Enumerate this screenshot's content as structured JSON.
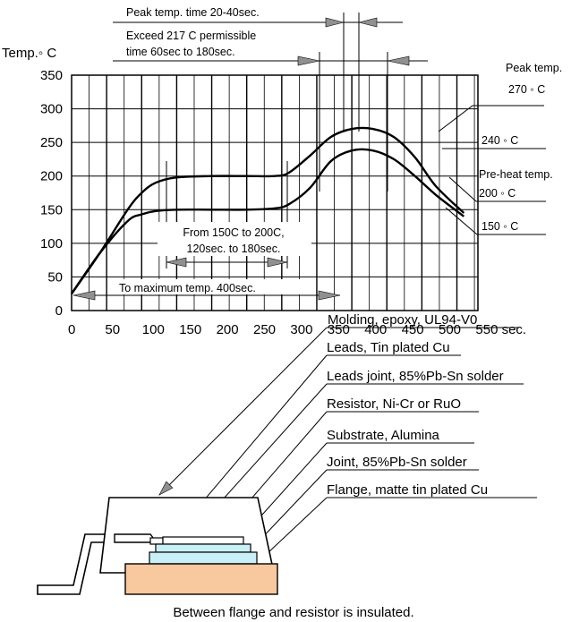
{
  "chart": {
    "y_axis_label": "Temp.◦ C",
    "x_unit": "sec.",
    "y_ticks": [
      "350",
      "300",
      "250",
      "200",
      "150",
      "100",
      "50",
      "0"
    ],
    "x_ticks": [
      "0",
      "50",
      "100",
      "150",
      "200",
      "250",
      "300",
      "350",
      "400",
      "450",
      "500",
      "550"
    ],
    "annotations": {
      "peak_time": "Peak temp. time 20-40sec.",
      "exceed_line1": "Exceed 217 C permissible",
      "exceed_line2": "time 60sec to 180sec.",
      "preheat_line1": "From 150C to 200C,",
      "preheat_line2": "120sec. to 180sec.",
      "to_max": "To maximum temp. 400sec."
    },
    "right_labels": {
      "peak_title": "Peak temp.",
      "t270": "270 ◦ C",
      "t240": "240 ◦ C",
      "preheat_title": "Pre-heat temp.",
      "t200": "200 ◦ C",
      "t150": "150 ◦ C"
    }
  },
  "chart_data": {
    "type": "line",
    "title": "",
    "xlabel": "sec.",
    "ylabel": "Temp.◦ C",
    "xlim": [
      0,
      580
    ],
    "ylim": [
      0,
      350
    ],
    "grid": true,
    "series": [
      {
        "x": [
          0,
          40,
          80,
          100,
          120,
          150,
          200,
          250,
          290,
          310,
          340,
          370,
          400,
          430,
          460,
          490,
          520,
          560
        ],
        "values": [
          25,
          85,
          150,
          175,
          190,
          198,
          200,
          200,
          200,
          205,
          230,
          258,
          270,
          270,
          258,
          228,
          185,
          145
        ]
      },
      {
        "x": [
          0,
          40,
          80,
          100,
          120,
          150,
          200,
          250,
          290,
          310,
          340,
          370,
          400,
          430,
          460,
          490,
          520,
          560
        ],
        "values": [
          25,
          85,
          133,
          143,
          148,
          150,
          150,
          150,
          152,
          158,
          182,
          222,
          238,
          238,
          225,
          200,
          172,
          140
        ]
      }
    ]
  },
  "parts": {
    "molding": "Molding, epoxy, UL94-V0",
    "leads": "Leads, Tin plated Cu",
    "leads_joint": "Leads joint, 85%Pb-Sn solder",
    "resistor": "Resistor, Ni-Cr or RuO",
    "substrate": "Substrate, Alumina",
    "joint": "Joint, 85%Pb-Sn solder",
    "flange": "Flange, matte tin plated Cu"
  },
  "caption": "Between flange and resistor is insulated.",
  "colors": {
    "flange": "#f8c89e",
    "substrate": "#c9f0f7",
    "line": "#000000"
  }
}
